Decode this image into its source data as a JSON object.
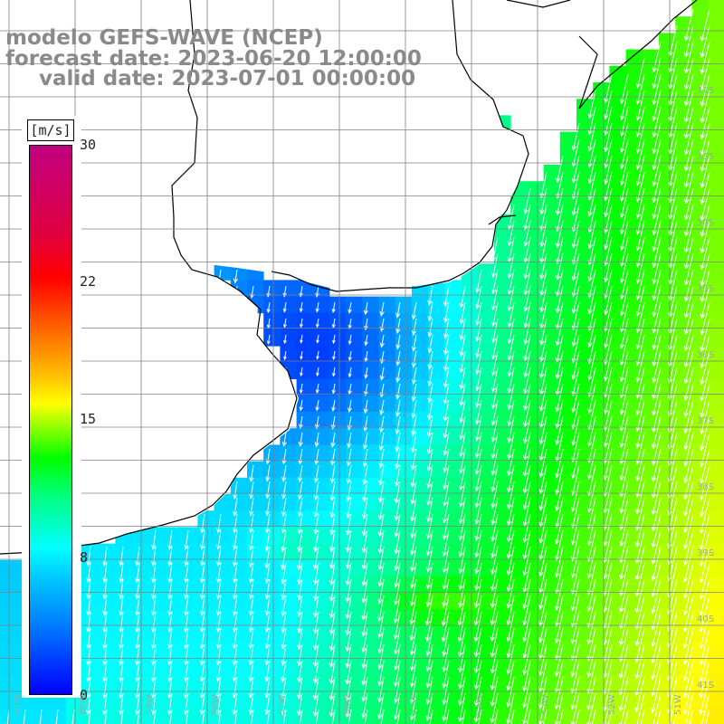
{
  "title": {
    "line1": "modelo GEFS-WAVE (NCEP)",
    "line2": "forecast date: 2023-06-20 12:00:00",
    "line3": "valid date: 2023-07-01 00:00:00"
  },
  "colorbar": {
    "unit": "[m/s]",
    "ticks": [
      "30",
      "22",
      "15",
      "8",
      "0"
    ],
    "tick_values": [
      30,
      22,
      15,
      8,
      0
    ],
    "min": 0,
    "max": 30,
    "colors": [
      "#0000ff",
      "#0080ff",
      "#00ffff",
      "#00ff00",
      "#ffff00",
      "#ff8000",
      "#ff0000",
      "#c00080"
    ]
  },
  "map": {
    "variable": "wind speed and direction",
    "region": "Río de la Plata and southwestern South Atlantic",
    "lat_labels": [
      "32S",
      "33S",
      "34S",
      "35S",
      "36S",
      "37S",
      "38S",
      "39S",
      "40S",
      "41S"
    ],
    "lon_labels": [
      "61W",
      "60W",
      "59W",
      "58W",
      "57W",
      "56W",
      "55W",
      "54W",
      "53W",
      "52W",
      "51W"
    ],
    "land_color": "#ffffff",
    "coastline_color": "#000000",
    "arrow_color": "#ffffff",
    "arrow_direction": "toward south-southwest"
  }
}
